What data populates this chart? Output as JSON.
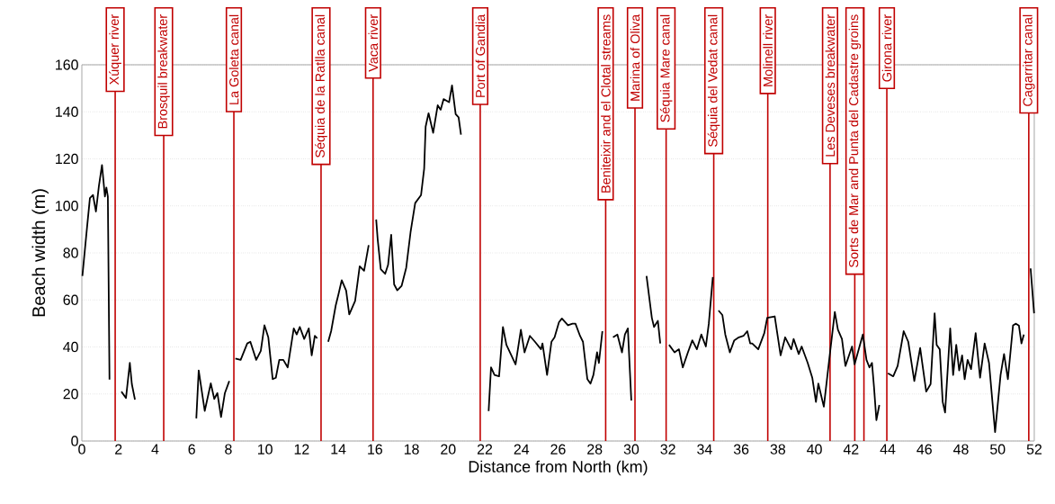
{
  "chart_data": {
    "type": "line",
    "xlabel": "Distance from North (km)",
    "ylabel": "Beach width (m)",
    "xlim": [
      0,
      52
    ],
    "ylim": [
      0,
      160
    ],
    "xticks": [
      0,
      2,
      4,
      6,
      8,
      10,
      12,
      14,
      16,
      18,
      20,
      22,
      24,
      26,
      28,
      30,
      32,
      34,
      36,
      38,
      40,
      42,
      44,
      46,
      48,
      50,
      52
    ],
    "yticks": [
      0,
      20,
      40,
      60,
      80,
      100,
      120,
      140,
      160
    ],
    "grid": "y",
    "series": [
      {
        "color": "#000000",
        "x": [
          0.03,
          0.28,
          0.44,
          0.61,
          0.77,
          0.93,
          1.1,
          1.26,
          1.34,
          1.42,
          1.51,
          1.8,
          2.16,
          2.41,
          2.62,
          2.73,
          2.9,
          4.5,
          6.25,
          6.38,
          6.71,
          7.04,
          7.23,
          7.4,
          7.6,
          7.81,
          8.05,
          8.2,
          8.38,
          8.67,
          9.03,
          9.2,
          9.52,
          9.77,
          9.97,
          10.18,
          10.42,
          10.59,
          10.78,
          11.0,
          11.24,
          11.57,
          11.73,
          11.9,
          12.14,
          12.39,
          12.55,
          12.72,
          12.85,
          13.2,
          13.45,
          13.61,
          13.86,
          14.02,
          14.19,
          14.43,
          14.6,
          14.92,
          15.17,
          15.41,
          15.66,
          15.9,
          16.07,
          16.15,
          16.32,
          16.56,
          16.72,
          16.89,
          17.05,
          17.22,
          17.46,
          17.71,
          17.95,
          18.2,
          18.52,
          18.69,
          18.77,
          18.93,
          19.18,
          19.43,
          19.59,
          19.75,
          20.05,
          20.21,
          20.41,
          20.57,
          20.7,
          21.5,
          22.21,
          22.34,
          22.53,
          22.78,
          22.99,
          23.18,
          23.68,
          23.97,
          24.17,
          24.46,
          24.74,
          25.07,
          25.15,
          25.4,
          25.64,
          25.81,
          26.05,
          26.21,
          26.54,
          26.79,
          26.95,
          27.2,
          27.36,
          27.6,
          27.77,
          27.93,
          28.13,
          28.23,
          28.42,
          28.7,
          29.0,
          29.24,
          29.49,
          29.65,
          29.81,
          30.0,
          30.4,
          30.83,
          31.12,
          31.24,
          31.45,
          31.58,
          31.8,
          32.06,
          32.36,
          32.6,
          32.81,
          33.09,
          33.33,
          33.58,
          33.82,
          34.07,
          34.23,
          34.45,
          34.6,
          34.76,
          34.97,
          35.13,
          35.38,
          35.62,
          35.87,
          36.12,
          36.33,
          36.49,
          36.6,
          36.93,
          37.26,
          37.42,
          37.83,
          38.15,
          38.4,
          38.73,
          38.86,
          39.14,
          39.3,
          39.63,
          39.88,
          40.08,
          40.21,
          40.51,
          40.84,
          41.11,
          41.28,
          41.5,
          41.69,
          41.94,
          42.05,
          42.19,
          42.64,
          42.84,
          43.0,
          43.14,
          43.25,
          43.38,
          43.54,
          43.8,
          44.01,
          44.3,
          44.54,
          44.87,
          45.12,
          45.45,
          45.77,
          46.1,
          46.34,
          46.56,
          46.67,
          46.84,
          47.0,
          47.13,
          47.41,
          47.57,
          47.74,
          47.9,
          48.06,
          48.2,
          48.36,
          48.55,
          48.8,
          49.04,
          49.29,
          49.53,
          49.86,
          50.16,
          50.35,
          50.56,
          50.84,
          51.0,
          51.16,
          51.3,
          51.43,
          51.6,
          51.8,
          51.99
        ],
        "values": [
          70.2,
          90.6,
          103.3,
          104.6,
          97.6,
          108.4,
          117.4,
          104,
          107.8,
          104,
          26.1,
          null,
          21,
          18.3,
          33.2,
          24.2,
          17.6,
          null,
          9.6,
          30,
          12.8,
          24.5,
          17.9,
          20.4,
          10.2,
          20.4,
          25.5,
          null,
          35.1,
          34.5,
          41.5,
          42.2,
          34.5,
          38.3,
          49.2,
          44.1,
          26.3,
          26.9,
          34.5,
          34.5,
          31.3,
          47.9,
          45.3,
          48.5,
          43.4,
          47.9,
          36.4,
          44.7,
          43.7,
          null,
          42.2,
          46.7,
          57.6,
          62.7,
          68.4,
          64,
          53.8,
          59.6,
          74.3,
          72.4,
          83.3,
          null,
          94.2,
          85.9,
          73.1,
          71.1,
          74.9,
          87.7,
          66.6,
          64.1,
          66,
          73.7,
          89,
          101.2,
          104.6,
          115.8,
          133.7,
          139.4,
          131.1,
          142.8,
          140.9,
          145.4,
          144.1,
          151.2,
          139,
          137.7,
          130.3,
          null,
          12.7,
          31.3,
          28.1,
          27.5,
          48.5,
          40.9,
          32.6,
          47.3,
          37.7,
          44.7,
          42.2,
          39,
          41.5,
          28.1,
          42.2,
          44.1,
          50.5,
          52.1,
          49.2,
          49.9,
          49.9,
          44.7,
          42.2,
          26.3,
          24.4,
          28.1,
          37.7,
          33.2,
          46.7,
          null,
          44.1,
          45.3,
          37.7,
          45.3,
          47.9,
          17.2,
          null,
          70.2,
          52.4,
          48.5,
          51.1,
          41.5,
          null,
          40.9,
          37.7,
          39,
          31.3,
          37.7,
          42.8,
          39,
          45.3,
          40.2,
          49.9,
          69.7,
          null,
          55.5,
          53.6,
          45.3,
          37.7,
          42.8,
          44.1,
          44.7,
          46.7,
          41.5,
          41.5,
          39,
          45.9,
          52.4,
          53,
          36.4,
          44.1,
          39,
          43.4,
          37,
          40.2,
          33.2,
          26.9,
          16.6,
          24.4,
          14.6,
          37,
          54.9,
          47.3,
          43.4,
          31.9,
          37.7,
          40.2,
          32.6,
          45.3,
          34.5,
          31.3,
          33.2,
          22.9,
          8.9,
          15.3,
          null,
          28.8,
          27.5,
          31.9,
          46.7,
          42.2,
          25.5,
          39.6,
          21,
          24.2,
          54.3,
          40.9,
          39,
          16.6,
          12.1,
          47.9,
          28.1,
          40.9,
          30,
          36.4,
          26.3,
          34.5,
          30.6,
          45.9,
          26.9,
          41.5,
          33.2,
          3.8,
          28.1,
          37,
          26.3,
          49.2,
          49.9,
          49.1,
          41.5,
          45.3,
          null,
          73.4,
          54.3
        ]
      }
    ],
    "ref_lines": [
      {
        "axis": "x",
        "value": 1.82,
        "label": "Xúquer river",
        "color": "#c00000"
      },
      {
        "axis": "x",
        "value": 4.47,
        "label": "Brosquil breakwater",
        "color": "#c00000"
      },
      {
        "axis": "x",
        "value": 8.3,
        "label": "La Goleta canal",
        "color": "#c00000"
      },
      {
        "axis": "x",
        "value": 13.06,
        "label": "Séquia de la Ratlla canal",
        "color": "#c00000"
      },
      {
        "axis": "x",
        "value": 15.9,
        "label": "Vaca river",
        "color": "#c00000"
      },
      {
        "axis": "x",
        "value": 21.75,
        "label": "Port of Gandia",
        "color": "#c00000"
      },
      {
        "axis": "x",
        "value": 28.6,
        "label": "Beniteixir and el Clotal streams",
        "color": "#c00000"
      },
      {
        "axis": "x",
        "value": 30.2,
        "label": "Marina of Oliva",
        "color": "#c00000"
      },
      {
        "axis": "x",
        "value": 31.9,
        "label": "Séquia Mare canal",
        "color": "#c00000"
      },
      {
        "axis": "x",
        "value": 34.5,
        "label": "Séquia del Vedat canal",
        "color": "#c00000"
      },
      {
        "axis": "x",
        "value": 37.45,
        "label": "Molinell river",
        "color": "#c00000"
      },
      {
        "axis": "x",
        "value": 40.85,
        "label": "Les Deveses breakwater",
        "color": "#c00000"
      },
      {
        "axis": "x",
        "value": 42.2,
        "label": "Sorts de Mar and Punta del Cadastre groins",
        "color": "#c00000"
      },
      {
        "axis": "x",
        "value": 42.7,
        "label": null,
        "color": "#c00000"
      },
      {
        "axis": "x",
        "value": 43.95,
        "label": "Girona river",
        "color": "#c00000"
      },
      {
        "axis": "x",
        "value": 51.7,
        "label": "Cagarritar canal",
        "color": "#c00000"
      }
    ]
  }
}
